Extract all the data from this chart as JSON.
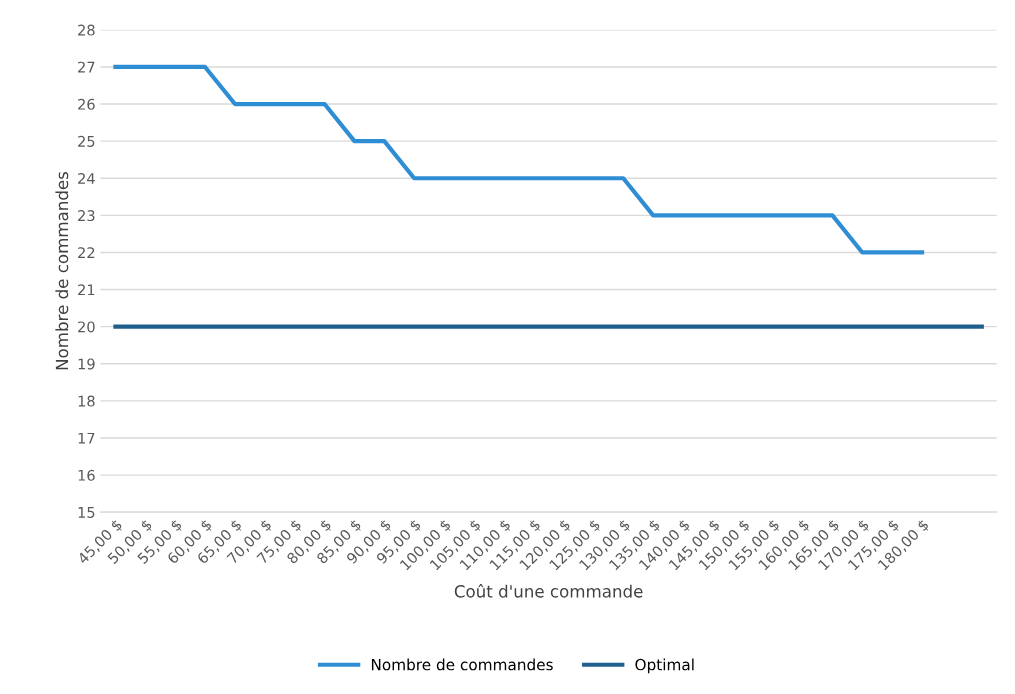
{
  "chart_data": {
    "type": "line",
    "xlabel": "Coût d'une commande",
    "ylabel": "Nombre de commandes",
    "categories": [
      "45,00 $",
      "50,00 $",
      "55,00 $",
      "60,00 $",
      "65,00 $",
      "70,00 $",
      "75,00 $",
      "80,00 $",
      "85,00 $",
      "90,00 $",
      "95,00 $",
      "100,00 $",
      "105,00 $",
      "110,00 $",
      "115,00 $",
      "120,00 $",
      "125,00 $",
      "130,00 $",
      "135,00 $",
      "140,00 $",
      "145,00 $",
      "150,00 $",
      "155,00 $",
      "160,00 $",
      "165,00 $",
      "170,00 $",
      "175,00 $",
      "180,00 $",
      null,
      null
    ],
    "series": [
      {
        "name": "Nombre de commandes",
        "color": "#2e8dd3",
        "values": [
          27,
          27,
          27,
          27,
          26,
          26,
          26,
          26,
          25,
          25,
          24,
          24,
          24,
          24,
          24,
          24,
          24,
          24,
          23,
          23,
          23,
          23,
          23,
          23,
          23,
          22,
          22,
          22,
          null,
          null
        ]
      },
      {
        "name": "Optimal",
        "color": "#1f5f8e",
        "values": [
          20,
          20,
          20,
          20,
          20,
          20,
          20,
          20,
          20,
          20,
          20,
          20,
          20,
          20,
          20,
          20,
          20,
          20,
          20,
          20,
          20,
          20,
          20,
          20,
          20,
          20,
          20,
          20,
          20,
          20
        ]
      }
    ],
    "ylim": [
      15,
      28
    ],
    "yticks": [
      15,
      16,
      17,
      18,
      19,
      20,
      21,
      22,
      23,
      24,
      25,
      26,
      27,
      28
    ],
    "grid": "y",
    "legend": "bottom",
    "marker": "none",
    "line_style": "solid"
  }
}
